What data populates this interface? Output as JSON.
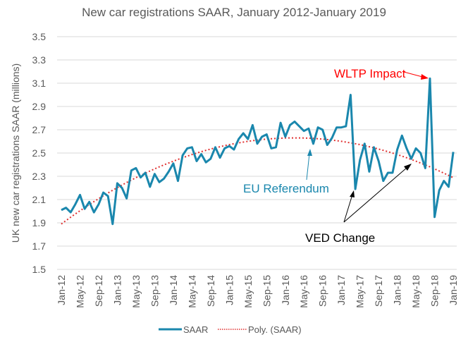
{
  "chart_data": {
    "type": "line",
    "title": "New car registrations SAAR, January 2012-January 2019",
    "xlabel": "",
    "ylabel": "UK new car registrations SAAR (millions)",
    "ylim": [
      1.5,
      3.5
    ],
    "yticks": [
      "1.5",
      "1.7",
      "1.9",
      "2.1",
      "2.3",
      "2.5",
      "2.7",
      "2.9",
      "3.1",
      "3.3",
      "3.5"
    ],
    "grid": true,
    "legend_position": "bottom",
    "x_tick_labels": [
      "Jan-12",
      "May-12",
      "Sep-12",
      "Jan-13",
      "May-13",
      "Sep-13",
      "Jan-14",
      "May-14",
      "Sep-14",
      "Jan-15",
      "May-15",
      "Sep-15",
      "Jan-16",
      "May-16",
      "Sep-16",
      "Jan-17",
      "May-17",
      "Sep-17",
      "Jan-18",
      "May-18",
      "Sep-18",
      "Jan-19"
    ],
    "x_tick_every_months": 4,
    "start": "Jan-12",
    "end": "Jan-19",
    "series": [
      {
        "name": "SAAR",
        "color": "#1a87ad",
        "style": "solid",
        "values": [
          2.01,
          2.03,
          1.99,
          2.06,
          2.14,
          2.02,
          2.08,
          1.99,
          2.06,
          2.16,
          2.13,
          1.89,
          2.24,
          2.2,
          2.11,
          2.35,
          2.37,
          2.29,
          2.33,
          2.21,
          2.32,
          2.25,
          2.28,
          2.34,
          2.41,
          2.26,
          2.48,
          2.54,
          2.55,
          2.43,
          2.49,
          2.42,
          2.45,
          2.55,
          2.46,
          2.54,
          2.56,
          2.53,
          2.62,
          2.67,
          2.62,
          2.74,
          2.58,
          2.64,
          2.66,
          2.54,
          2.55,
          2.76,
          2.64,
          2.74,
          2.77,
          2.73,
          2.69,
          2.71,
          2.58,
          2.72,
          2.7,
          2.57,
          2.63,
          2.72,
          2.72,
          2.73,
          3.0,
          2.19,
          2.44,
          2.58,
          2.34,
          2.55,
          2.43,
          2.26,
          2.33,
          2.33,
          2.53,
          2.65,
          2.54,
          2.45,
          2.54,
          2.5,
          2.37,
          3.14,
          1.95,
          2.18,
          2.26,
          2.21,
          2.51
        ]
      },
      {
        "name": "Poly. (SAAR)",
        "color": "#e03030",
        "style": "dotted",
        "polynomial": {
          "order": 2,
          "start_value": 1.89,
          "peak_value": 2.63,
          "peak_month_index": 50,
          "end_value": 2.32
        }
      }
    ],
    "annotations": [
      {
        "text": "WLTP Impact",
        "color": "#ff0000",
        "points_to": "Aug-18"
      },
      {
        "text": "EU Referendum",
        "color": "#1a87ad",
        "points_to": "Jun-16"
      },
      {
        "text": "VED Change",
        "color": "#000000",
        "points_to": [
          "Apr-17",
          "Apr-18"
        ]
      }
    ]
  }
}
